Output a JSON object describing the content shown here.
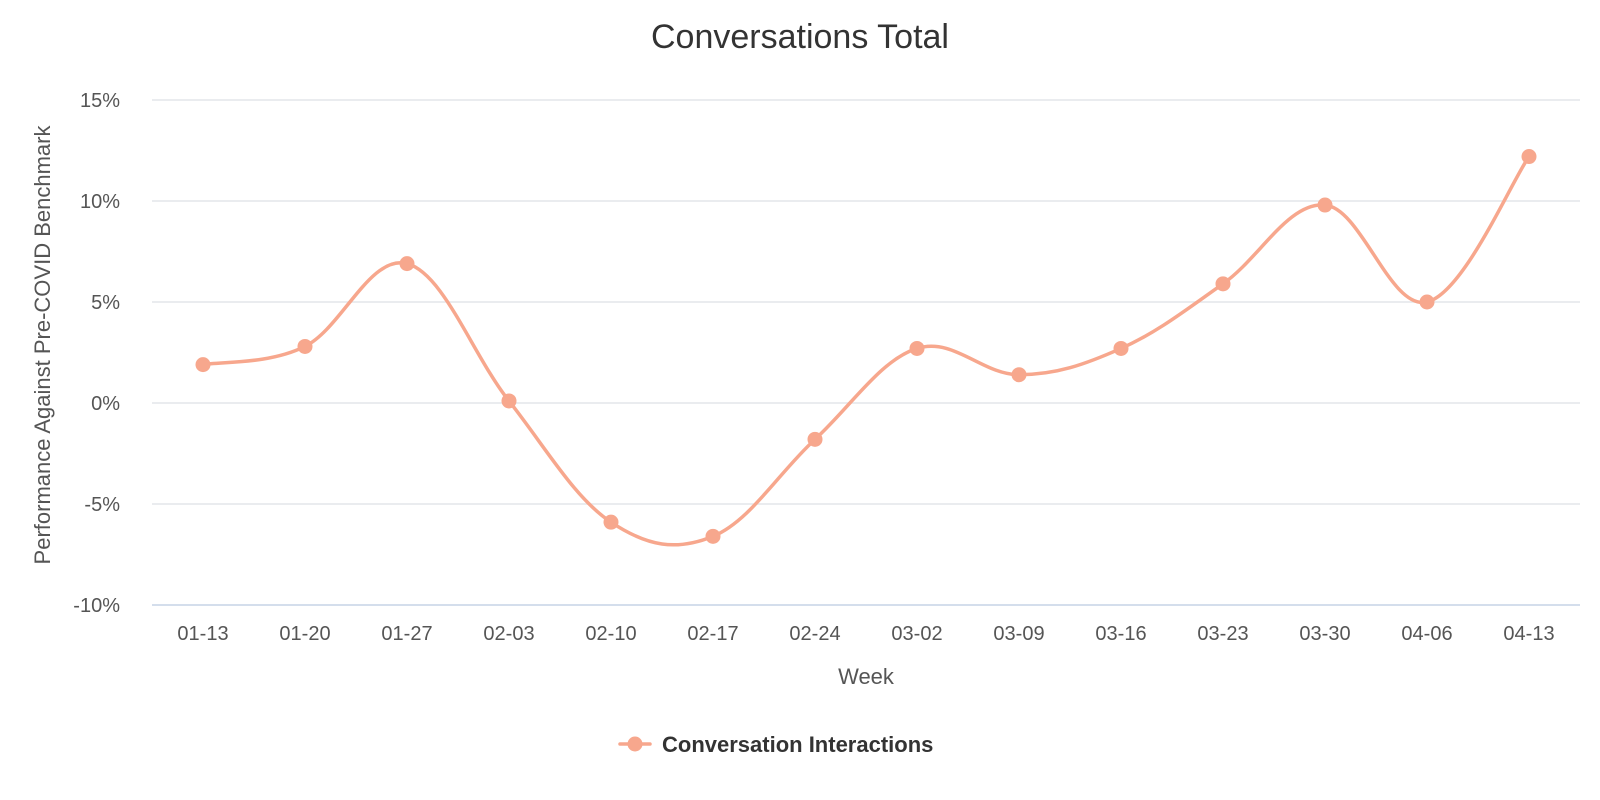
{
  "chart_data": {
    "type": "line",
    "title": "Conversations Total",
    "xlabel": "Week",
    "ylabel": "Performance Against Pre-COVID Benchmark",
    "categories": [
      "01-13",
      "01-20",
      "01-27",
      "02-03",
      "02-10",
      "02-17",
      "02-24",
      "03-02",
      "03-09",
      "03-16",
      "03-23",
      "03-30",
      "04-06",
      "04-13"
    ],
    "series": [
      {
        "name": "Conversation Interactions",
        "values": [
          1.9,
          2.8,
          6.9,
          0.1,
          -5.9,
          -6.6,
          -1.8,
          2.7,
          1.4,
          2.7,
          5.9,
          9.8,
          5.0,
          12.2
        ]
      }
    ],
    "ylim": [
      -10,
      15
    ],
    "yticks": [
      -10,
      -5,
      0,
      5,
      10,
      15
    ],
    "ytick_labels": [
      "-10%",
      "-5%",
      "0%",
      "5%",
      "10%",
      "15%"
    ],
    "grid": true,
    "legend_position": "bottom-center",
    "colors": {
      "series": "#f7a78d",
      "grid": "#e3e6ea",
      "baseline": "#c6d3e6"
    }
  }
}
